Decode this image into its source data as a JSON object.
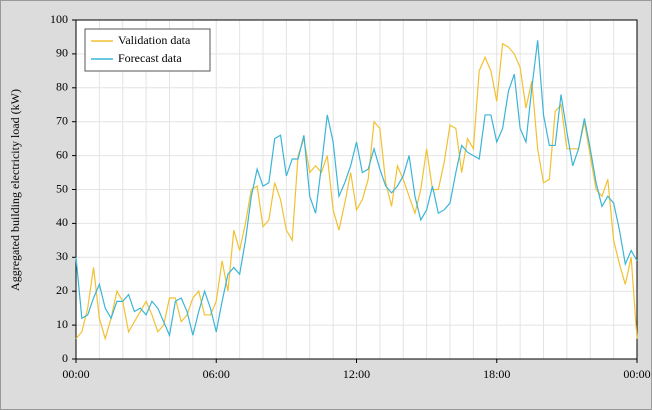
{
  "chart_data": {
    "type": "line",
    "y_label": "Aggregated building electricity load (kW)",
    "x": [
      0,
      0.25,
      0.5,
      0.75,
      1,
      1.25,
      1.5,
      1.75,
      2,
      2.25,
      2.5,
      2.75,
      3,
      3.25,
      3.5,
      3.75,
      4,
      4.25,
      4.5,
      4.75,
      5,
      5.25,
      5.5,
      5.75,
      6,
      6.25,
      6.5,
      6.75,
      7,
      7.25,
      7.5,
      7.75,
      8,
      8.25,
      8.5,
      8.75,
      9,
      9.25,
      9.5,
      9.75,
      10,
      10.25,
      10.5,
      10.75,
      11,
      11.25,
      11.5,
      11.75,
      12,
      12.25,
      12.5,
      12.75,
      13,
      13.25,
      13.5,
      13.75,
      14,
      14.25,
      14.5,
      14.75,
      15,
      15.25,
      15.5,
      15.75,
      16,
      16.25,
      16.5,
      16.75,
      17,
      17.25,
      17.5,
      17.75,
      18,
      18.25,
      18.5,
      18.75,
      19,
      19.25,
      19.5,
      19.75,
      20,
      20.25,
      20.5,
      20.75,
      21,
      21.25,
      21.5,
      21.75,
      22,
      22.25,
      22.5,
      22.75,
      23,
      23.25,
      23.5,
      23.75,
      24
    ],
    "series": [
      {
        "name": "Validation data",
        "color": "#f2c132",
        "values": [
          6,
          8,
          15,
          27,
          12,
          6,
          12,
          20,
          17,
          8,
          11,
          14,
          17,
          13,
          8,
          10,
          18,
          18,
          11,
          13,
          18,
          20,
          13,
          13,
          17,
          29,
          20,
          38,
          32,
          40,
          50,
          51,
          39,
          41,
          52,
          47,
          38,
          35,
          60,
          65,
          55,
          57,
          55,
          60,
          44,
          38,
          46,
          55,
          44,
          47,
          53,
          70,
          68,
          52,
          45,
          57,
          53,
          48,
          43,
          50,
          62,
          50,
          50,
          58,
          69,
          68,
          55,
          65,
          62,
          85,
          89,
          85,
          76,
          93,
          92,
          90,
          86,
          74,
          82,
          62,
          52,
          53,
          73,
          75,
          62,
          62,
          62,
          70,
          60,
          50,
          48,
          53,
          35,
          28,
          22,
          30,
          6
        ]
      },
      {
        "name": "Forecast data",
        "color": "#3ab5d8",
        "values": [
          30,
          12,
          13,
          18,
          22,
          15,
          12,
          17,
          17,
          19,
          14,
          15,
          13,
          17,
          15,
          11,
          7,
          17,
          18,
          14,
          7,
          14,
          20,
          15,
          8,
          17,
          25,
          27,
          25,
          35,
          48,
          56,
          51,
          52,
          65,
          66,
          54,
          59,
          59,
          66,
          48,
          43,
          57,
          72,
          64,
          48,
          52,
          57,
          64,
          55,
          56,
          62,
          56,
          51,
          49,
          51,
          54,
          60,
          48,
          41,
          44,
          51,
          43,
          44,
          46,
          55,
          63,
          61,
          60,
          59,
          72,
          72,
          64,
          68,
          79,
          84,
          68,
          64,
          80,
          94,
          72,
          63,
          63,
          78,
          67,
          57,
          62,
          71,
          62,
          52,
          45,
          48,
          46,
          38,
          28,
          32,
          29
        ]
      }
    ],
    "xlim": [
      0,
      24
    ],
    "xticks": [
      {
        "value": 0,
        "label": "00:00"
      },
      {
        "value": 6,
        "label": "06:00"
      },
      {
        "value": 12,
        "label": "12:00"
      },
      {
        "value": 18,
        "label": "18:00"
      },
      {
        "value": 24,
        "label": "00:00"
      }
    ],
    "x_minor_ticks": [
      0,
      1,
      2,
      3,
      4,
      5,
      6,
      7,
      8,
      9,
      10,
      11,
      12,
      13,
      14,
      15,
      16,
      17,
      18,
      19,
      20,
      21,
      22,
      23,
      24
    ],
    "ylim": [
      0,
      100
    ],
    "yticks": [
      0,
      10,
      20,
      30,
      40,
      50,
      60,
      70,
      80,
      90,
      100
    ],
    "grid": true,
    "legend": "upper-left"
  }
}
